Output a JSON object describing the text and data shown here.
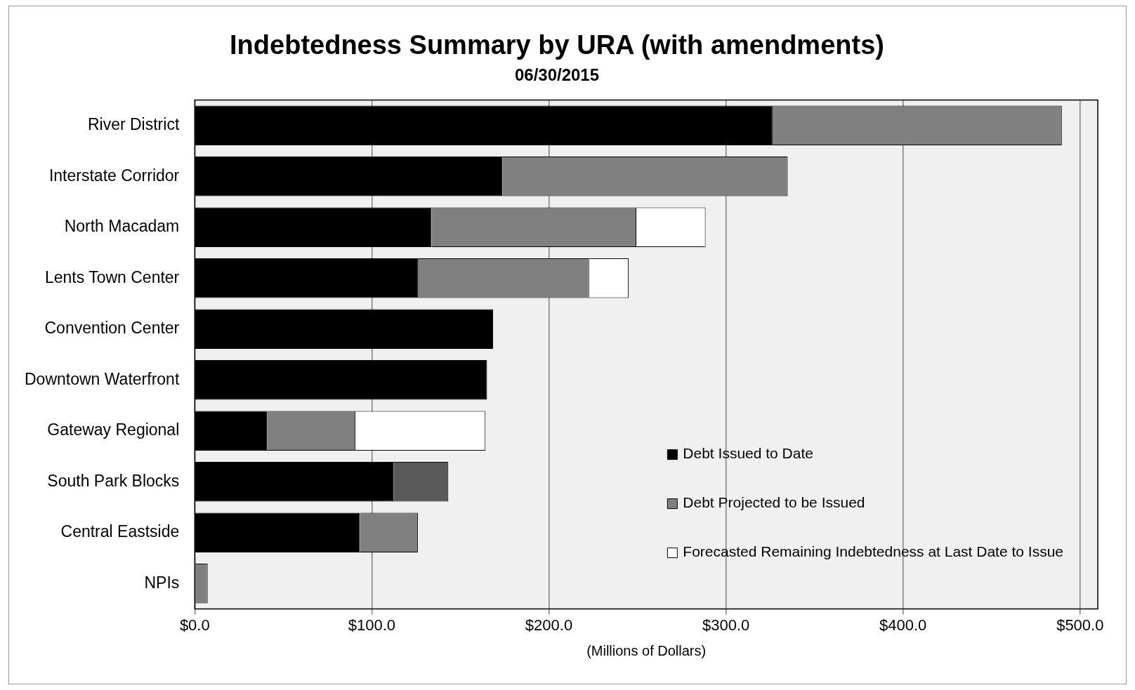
{
  "chart_data": {
    "type": "bar",
    "orientation": "horizontal",
    "stacked": true,
    "title": "Indebtedness Summary by URA (with amendments)",
    "subtitle": "06/30/2015",
    "xlabel": "(Millions of Dollars)",
    "categories": [
      "River District",
      "Interstate Corridor",
      "North Macadam",
      "Lents Town Center",
      "Convention Center",
      "Downtown Waterfront",
      "Gateway Regional",
      "South Park Blocks",
      "Central Eastside",
      "NPIs"
    ],
    "series": [
      {
        "name": "Debt Issued to Date",
        "color": "#000000",
        "values": [
          326.3,
          173.7,
          133.7,
          126,
          168.5,
          165.1,
          40.8,
          112.2,
          93.3,
          0
        ]
      },
      {
        "name": "Debt Projected to be Issued",
        "color": "#808080",
        "values": [
          163.4,
          161.2,
          115.7,
          96.7,
          null,
          null,
          49.9,
          null,
          32.7,
          7.3
        ]
      },
      {
        "name": "Forecasted Remaining Indebtedness at Last Date to Issue",
        "color": "#ffffff",
        "values": [
          null,
          null,
          39.1,
          22.3,
          null,
          null,
          73.5,
          null,
          null,
          null
        ]
      },
      {
        "color": "#5a5a5a",
        "values": [
          null,
          null,
          null,
          null,
          null,
          null,
          null,
          31,
          null,
          null
        ]
      }
    ],
    "xlim": [
      0,
      510
    ],
    "xticks": [
      {
        "value": 0,
        "label": "$0.0"
      },
      {
        "value": 100,
        "label": "$100.0"
      },
      {
        "value": 200,
        "label": "$200.0"
      },
      {
        "value": 300,
        "label": "$300.0"
      },
      {
        "value": 400,
        "label": "$400.0"
      },
      {
        "value": 500,
        "label": "$500.0"
      }
    ],
    "grid": "x",
    "legend": "bottom right"
  }
}
